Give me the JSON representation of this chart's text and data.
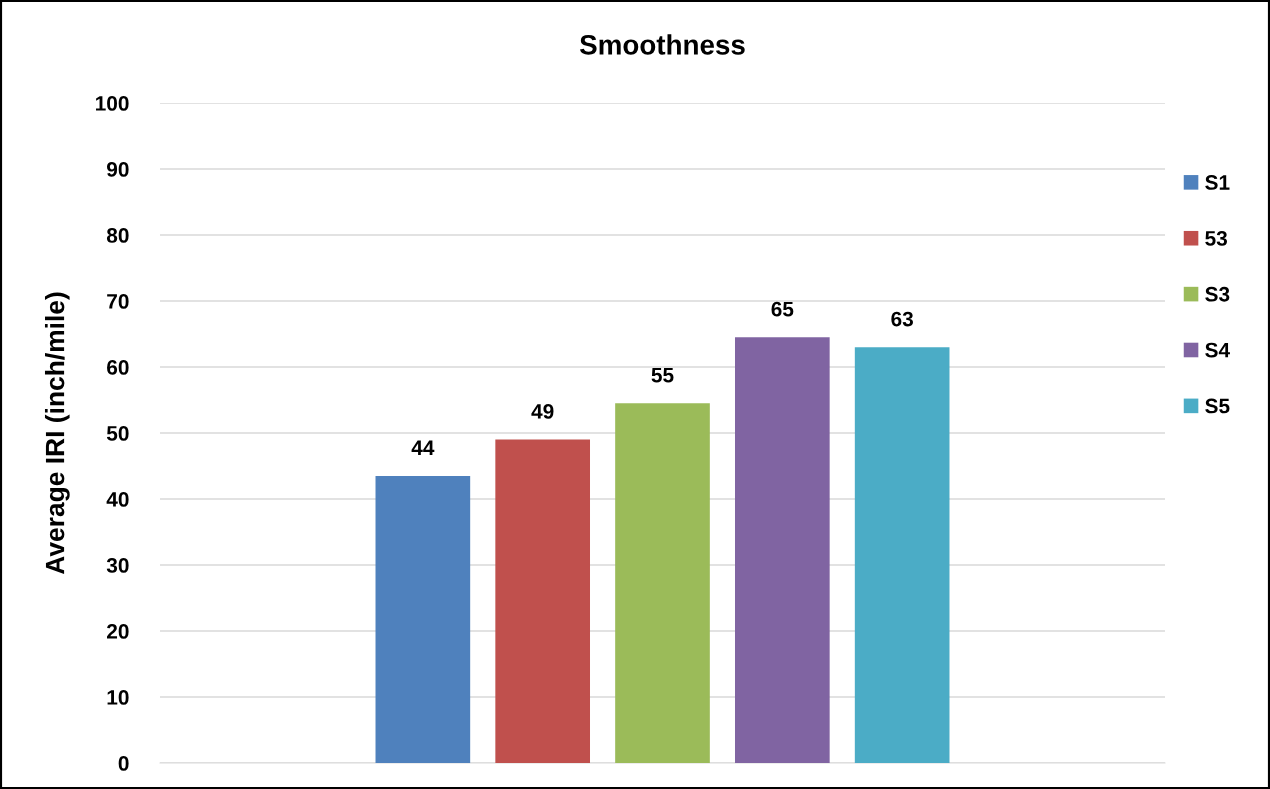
{
  "chart_data": {
    "type": "bar",
    "title": "Smoothness",
    "ylabel": "Average IRI (inch/mile)",
    "categories": [
      null
    ],
    "series": [
      {
        "name": "S1",
        "color": "#4f81bd",
        "values": [
          43.5
        ],
        "value_labels": [
          "44"
        ]
      },
      {
        "name": "53",
        "color": "#c0504d",
        "values": [
          49
        ],
        "value_labels": [
          "49"
        ]
      },
      {
        "name": "S3",
        "color": "#9bbb59",
        "values": [
          54.5
        ],
        "value_labels": [
          "55"
        ]
      },
      {
        "name": "S4",
        "color": "#8064a2",
        "values": [
          64.5
        ],
        "value_labels": [
          "65"
        ]
      },
      {
        "name": "S5",
        "color": "#4bacc6",
        "values": [
          63
        ],
        "value_labels": [
          "63"
        ]
      }
    ],
    "ylim": [
      0,
      100
    ],
    "yticks": [
      0,
      10,
      20,
      30,
      40,
      50,
      60,
      70,
      80,
      90,
      100
    ],
    "grid": "y",
    "legend": "right"
  }
}
